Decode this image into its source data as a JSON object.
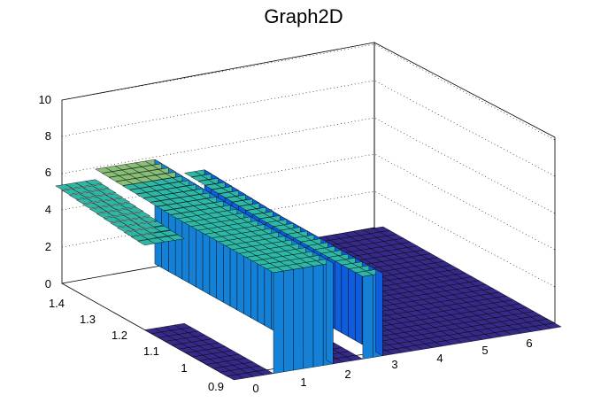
{
  "chart_data": {
    "type": "surface",
    "title": "Graph2D",
    "xlabel": "",
    "ylabel": "",
    "zlabel": "",
    "x_ticks": [
      "0",
      "1",
      "2",
      "3",
      "4",
      "5",
      "6"
    ],
    "y_ticks": [
      "0.9",
      "1",
      "1.1",
      "1.2",
      "1.3",
      "1.4"
    ],
    "z_ticks": [
      "0",
      "2",
      "4",
      "6",
      "8",
      "10"
    ],
    "xlim": [
      0,
      6.6
    ],
    "ylim": [
      0.88,
      1.44
    ],
    "zlim": [
      0,
      10
    ],
    "colormap": [
      "#352a87",
      "#0f5cdd",
      "#1481d6",
      "#06a4ca",
      "#2eb7a4",
      "#87bf77",
      "#d1bb59",
      "#fec832",
      "#f9fb0e"
    ],
    "grid": "dotted lines on back walls",
    "segments": [
      {
        "x_from": 0.0,
        "x_to": 0.8,
        "z_value": 0.0,
        "note": "hidden region"
      },
      {
        "x_from": 0.8,
        "x_to": 2.0,
        "z_value": 5.5
      },
      {
        "x_from": 2.0,
        "x_to": 2.6,
        "z_value": 0.0
      },
      {
        "x_from": 2.6,
        "x_to": 3.0,
        "z_value": 4.5
      },
      {
        "x_from": 3.0,
        "x_to": 6.6,
        "z_value": 0.0
      }
    ]
  }
}
